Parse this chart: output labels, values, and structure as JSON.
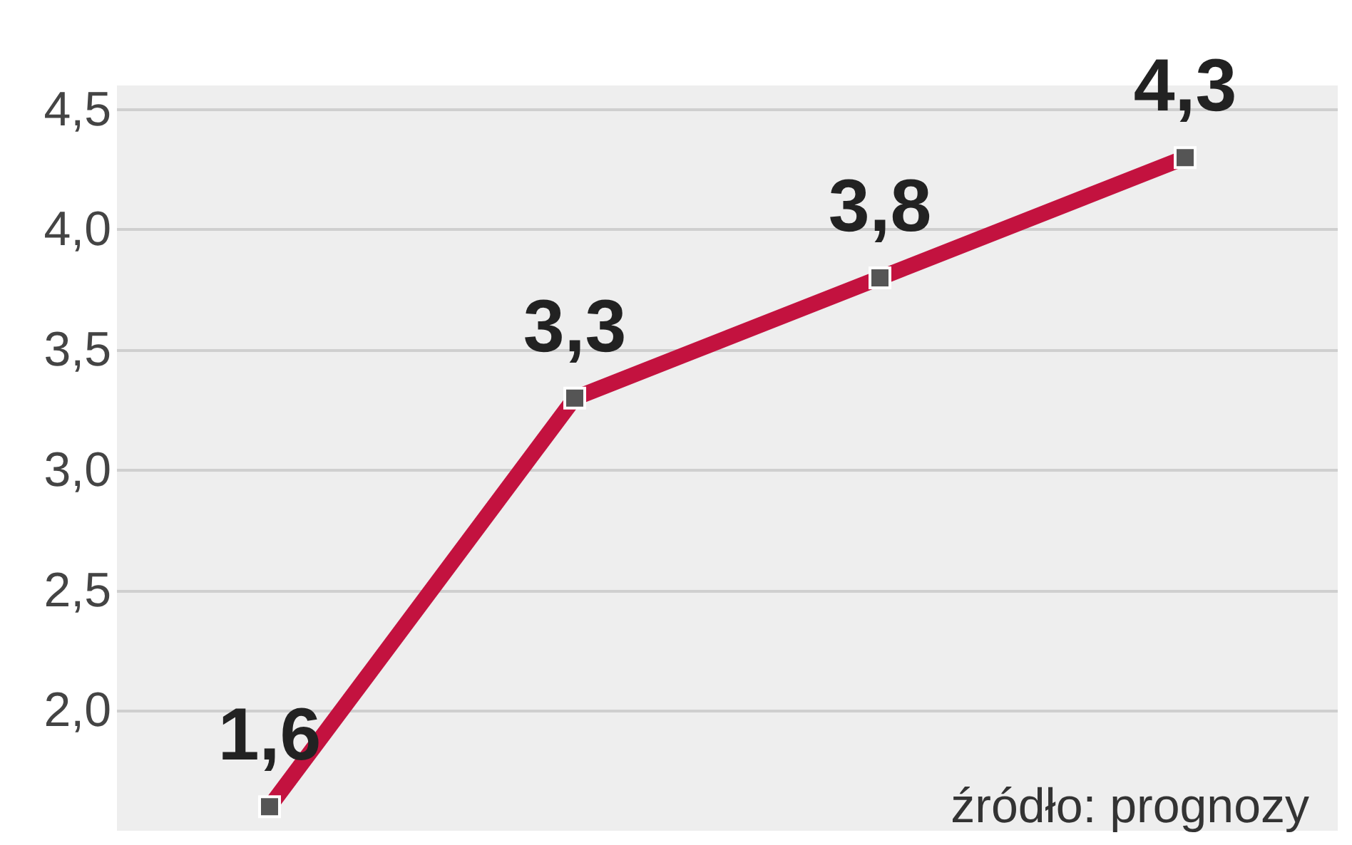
{
  "chart_data": {
    "type": "line",
    "categories": [
      null,
      null,
      null,
      null
    ],
    "series": [
      {
        "color": "#c3123f",
        "values": [
          1.6,
          3.3,
          3.8,
          4.3
        ],
        "value_labels": [
          "1,6",
          "3,3",
          "3,8",
          "4,3"
        ]
      }
    ],
    "marker": "square",
    "line_style": "solid",
    "grid": "y",
    "ylim": [
      1.5,
      4.6
    ],
    "yticks": [
      {
        "value": 2.0,
        "label": "2,0"
      },
      {
        "value": 2.5,
        "label": "2,5"
      },
      {
        "value": 3.0,
        "label": "3,0"
      },
      {
        "value": 3.5,
        "label": "3,5"
      },
      {
        "value": 4.0,
        "label": "4,0"
      },
      {
        "value": 4.5,
        "label": "4,5"
      }
    ],
    "tick_labels": "y",
    "annotations": [
      "źródło: prognozy"
    ]
  }
}
